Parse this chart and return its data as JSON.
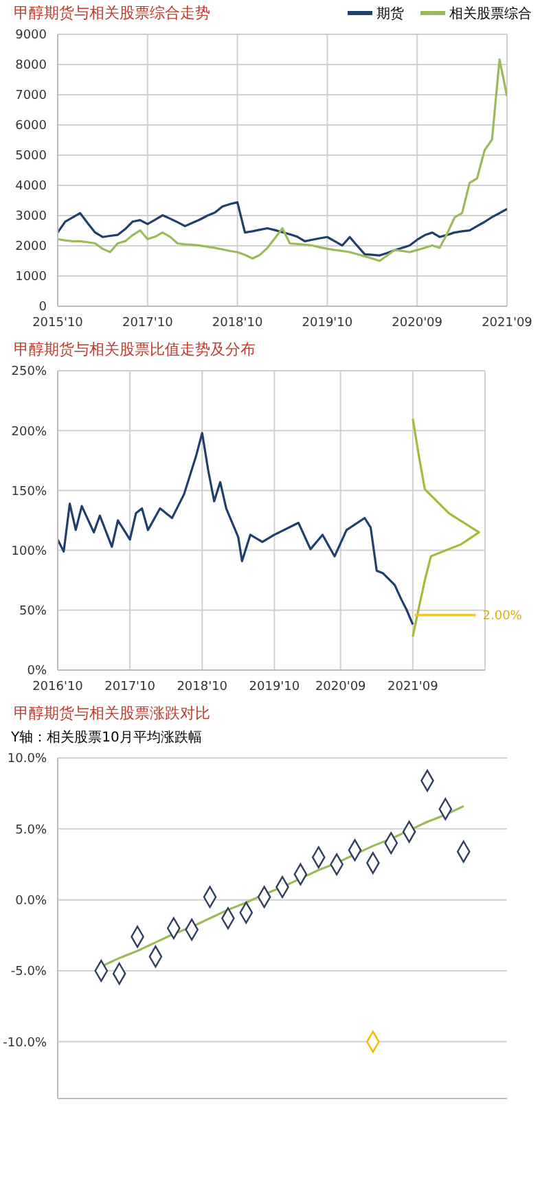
{
  "chart_data": [
    {
      "type": "line",
      "title": "甲醇期货与相关股票综合走势",
      "categories": [
        "2015'10",
        null,
        null,
        null,
        null,
        null,
        null,
        null,
        null,
        null,
        null,
        null,
        "2017'10",
        null,
        null,
        null,
        null,
        null,
        null,
        null,
        null,
        null,
        null,
        null,
        "2018'10",
        null,
        null,
        null,
        null,
        null,
        null,
        null,
        null,
        null,
        null,
        null,
        "2019'10",
        null,
        null,
        null,
        null,
        null,
        null,
        null,
        null,
        null,
        null,
        null,
        "2020'09",
        null,
        null,
        null,
        null,
        null,
        null,
        null,
        null,
        null,
        null,
        null,
        "2021'09"
      ],
      "ylim": [
        0,
        9000
      ],
      "yticks": [
        0,
        1000,
        2000,
        3000,
        4000,
        5000,
        6000,
        7000,
        8000,
        9000
      ],
      "grid": true,
      "legend": "top right",
      "series": [
        {
          "name": "期货",
          "color": "#1f3f6e",
          "values": [
            2440,
            2800,
            2940,
            3080,
            2750,
            2440,
            2290,
            2330,
            2360,
            2550,
            2800,
            2850,
            2720,
            2860,
            3010,
            2900,
            2780,
            2650,
            2760,
            2870,
            3000,
            3100,
            3300,
            3380,
            3440,
            2440,
            2480,
            2530,
            2580,
            2520,
            2450,
            2380,
            2300,
            2150,
            2200,
            2250,
            2290,
            2150,
            2010,
            2290,
            2000,
            1720,
            1700,
            1680,
            1760,
            1850,
            1930,
            2010,
            2200,
            2350,
            2440,
            2290,
            2360,
            2440,
            2480,
            2510,
            2650,
            2790,
            2950,
            3080,
            3220
          ]
        },
        {
          "name": "相关股票综合",
          "color": "#9bbb59",
          "values": [
            2220,
            2180,
            2150,
            2150,
            2120,
            2080,
            1900,
            1790,
            2080,
            2150,
            2350,
            2510,
            2220,
            2300,
            2440,
            2300,
            2080,
            2050,
            2030,
            2010,
            1970,
            1930,
            1880,
            1830,
            1790,
            1700,
            1580,
            1700,
            1930,
            2250,
            2580,
            2080,
            2060,
            2040,
            2010,
            1950,
            1900,
            1860,
            1830,
            1790,
            1720,
            1650,
            1580,
            1500,
            1680,
            1860,
            1830,
            1790,
            1860,
            1930,
            2010,
            1930,
            2400,
            2940,
            3080,
            4080,
            4230,
            5160,
            5520,
            8170,
            6950
          ]
        }
      ]
    },
    {
      "type": "line",
      "title": "甲醇期货与相关股票比值走势及分布",
      "xlim": [
        "2016-10",
        "2022-09"
      ],
      "xticks": [
        {
          "value": "2016-10",
          "label": "2016'10"
        },
        {
          "value": "2017-10",
          "label": "2017'10"
        },
        {
          "value": "2018-10",
          "label": "2018'10"
        },
        {
          "value": "2019-10",
          "label": "2019'10"
        },
        {
          "value": "2020-09",
          "label": "2020'09"
        },
        {
          "value": "2021-09",
          "label": "2021'09"
        },
        {
          "value": "2022-09",
          "label": null
        }
      ],
      "ylim": [
        0,
        250
      ],
      "yticks": [
        {
          "value": 0,
          "label": "0%"
        },
        {
          "value": 50,
          "label": "50%"
        },
        {
          "value": 100,
          "label": "100%"
        },
        {
          "value": 150,
          "label": "150%"
        },
        {
          "value": 200,
          "label": "200%"
        },
        {
          "value": 250,
          "label": "250%"
        }
      ],
      "grid": true,
      "annotations": [
        {
          "text": "2.00%",
          "x": "2022-07-15",
          "y": 46
        }
      ],
      "series": [
        {
          "color": "#1f3f6e",
          "x": [
            "2016-10",
            "2016-11",
            "2016-12",
            "2017-01",
            "2017-02",
            "2017-04",
            "2017-05",
            "2017-07",
            "2017-08",
            "2017-10",
            "2017-11",
            "2017-12",
            "2018-01",
            "2018-03",
            "2018-05",
            "2018-07",
            "2018-08",
            "2018-09",
            "2018-10",
            "2018-11",
            "2018-12",
            "2019-01",
            "2019-02",
            "2019-04",
            "2019-04-20",
            "2019-06",
            "2019-08",
            "2019-10",
            "2020-02",
            "2020-04",
            "2020-06",
            "2020-08",
            "2020-10",
            "2021-01",
            "2021-02",
            "2021-03",
            "2021-04",
            "2021-06",
            "2021-07",
            "2021-08",
            "2021-09"
          ],
          "values": [
            109,
            99,
            139,
            117,
            137,
            115,
            129,
            103,
            125,
            109,
            131,
            135,
            117,
            135,
            127,
            147,
            163,
            179,
            198,
            167,
            141,
            157,
            135,
            111,
            91,
            113,
            107,
            113,
            123,
            101,
            113,
            95,
            117,
            127,
            119,
            83,
            81,
            71,
            60,
            50,
            38
          ]
        },
        {
          "color": "#a9b83a",
          "x": [
            "2021-09",
            "2021-10",
            "2021-11",
            "2022-03",
            "2022-08",
            "2022-05",
            "2021-12",
            "2021-11",
            "2021-10",
            "2021-09"
          ],
          "values": [
            210,
            179,
            151,
            131,
            115,
            105,
            95,
            75,
            52,
            28
          ]
        },
        {
          "color": "#f5c518",
          "x": [
            "2021-09-10",
            "2022-07-15"
          ],
          "values": [
            46,
            46
          ]
        }
      ]
    },
    {
      "type": "scatter",
      "title": "甲醇期货与相关股票涨跌对比",
      "ylabel": "Y轴：相关股票10月平均涨跌幅",
      "categories": [
        null,
        null,
        null,
        null,
        null,
        null,
        null,
        null,
        null,
        null,
        null,
        null,
        null,
        null,
        null,
        null,
        null,
        null,
        null,
        null,
        null
      ],
      "ylim": [
        -14,
        10
      ],
      "yticks": [
        {
          "value": -10,
          "label": "-10.0%"
        },
        {
          "value": -5,
          "label": "-5.0%"
        },
        {
          "value": 0,
          "label": "0.0%"
        },
        {
          "value": 5,
          "label": "5.0%"
        },
        {
          "value": 10,
          "label": "10.0%"
        }
      ],
      "grid": "y",
      "tick_labels": "y",
      "marker": "diamond",
      "series": [
        {
          "color": "#2f3f5f",
          "values": [
            -5.0,
            -5.2,
            -2.6,
            -4.0,
            -2.0,
            -2.1,
            0.2,
            -1.3,
            -0.9,
            0.2,
            0.9,
            1.8,
            3.0,
            2.5,
            3.5,
            2.6,
            4.0,
            4.8,
            8.4,
            6.4,
            3.4
          ]
        },
        {
          "type": "line",
          "marker": "none",
          "color": "#9bbb59",
          "values": [
            -4.7,
            -4.1,
            -3.6,
            -3.0,
            -2.4,
            -1.9,
            -1.3,
            -0.7,
            -0.2,
            0.4,
            0.9,
            1.5,
            2.1,
            2.6,
            3.2,
            3.8,
            4.3,
            4.9,
            5.5,
            6.0,
            6.6
          ]
        },
        {
          "color": "#f5b800",
          "values": [
            null,
            null,
            null,
            null,
            null,
            null,
            null,
            null,
            null,
            null,
            null,
            null,
            null,
            null,
            null,
            -10.0,
            null,
            null,
            null,
            null,
            null
          ]
        }
      ]
    }
  ]
}
